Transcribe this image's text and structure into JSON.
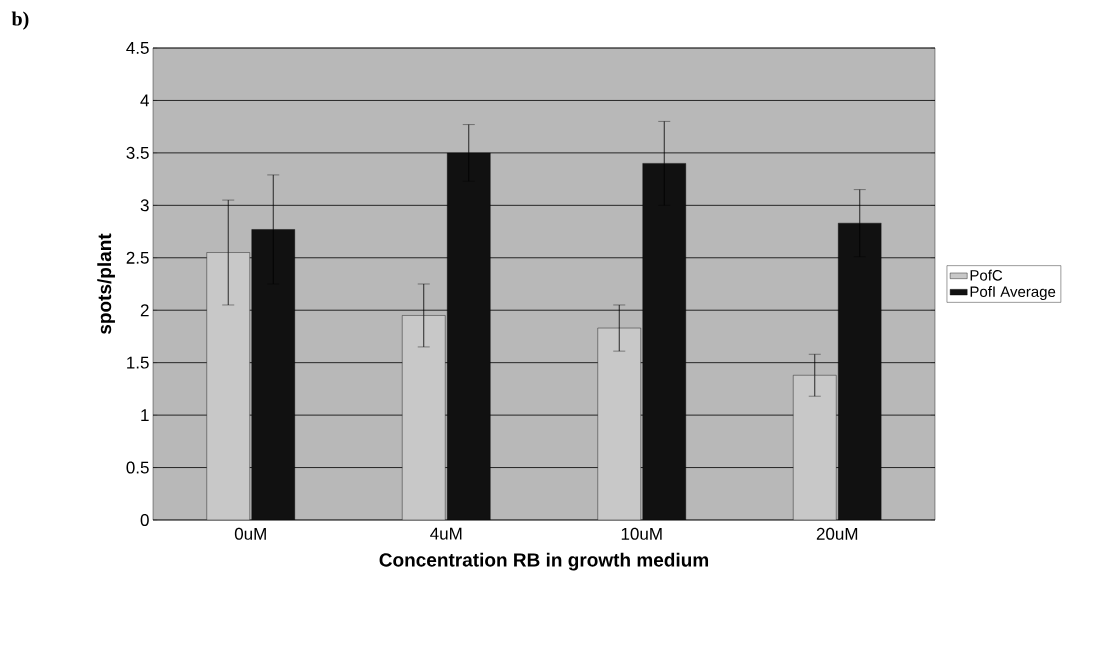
{
  "chart_data": {
    "type": "bar",
    "xlabel": "Concentration RB in growth medium",
    "ylabel": "spots/plant",
    "annotations": [
      "b)"
    ],
    "categories": [
      "0uM",
      "4uM",
      "10uM",
      "20uM"
    ],
    "series": [
      {
        "name": "PofC",
        "color": "#c8c8c8",
        "values": [
          2.55,
          1.95,
          1.83,
          1.38
        ],
        "errors": [
          0.5,
          0.3,
          0.22,
          0.2
        ]
      },
      {
        "name": "PofI Average",
        "color": "#111111",
        "values": [
          2.77,
          3.5,
          3.4,
          2.83
        ],
        "errors": [
          0.52,
          0.27,
          0.4,
          0.32
        ]
      }
    ],
    "ylim": [
      0,
      4.5
    ],
    "yticks": [
      0,
      0.5,
      1,
      1.5,
      2,
      2.5,
      3,
      3.5,
      4,
      4.5
    ],
    "grid": "y",
    "legend": "right"
  }
}
